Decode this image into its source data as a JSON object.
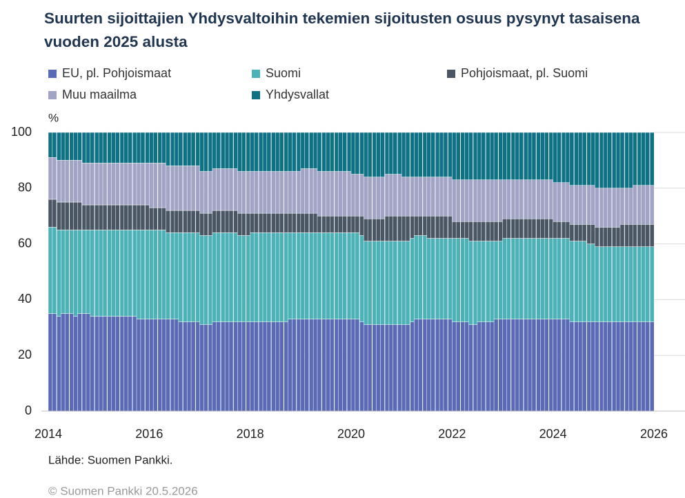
{
  "chart_data": {
    "type": "stacked_bar",
    "title": "Suurten sijoittajien Yhdysvaltoihin tekemien sijoitusten osuus pysynyt tasaisena vuoden 2025 alusta",
    "y_label": "%",
    "source": "Lähde: Suomen Pankki.",
    "copyright": "© Suomen Pankki 20.5.2026",
    "xlim": [
      2014,
      2026
    ],
    "xticks": [
      2014,
      2016,
      2018,
      2020,
      2022,
      2024,
      2026
    ],
    "ylim": [
      0,
      100
    ],
    "yticks": [
      0,
      20,
      40,
      60,
      80,
      100
    ],
    "grid": true,
    "x": [
      2014,
      2014.08,
      2014.17,
      2014.25,
      2014.33,
      2014.42,
      2014.5,
      2014.58,
      2014.67,
      2014.75,
      2014.83,
      2014.92,
      2015,
      2015.08,
      2015.17,
      2015.25,
      2015.33,
      2015.42,
      2015.5,
      2015.58,
      2015.67,
      2015.75,
      2015.83,
      2015.92,
      2016,
      2016.08,
      2016.17,
      2016.25,
      2016.33,
      2016.42,
      2016.5,
      2016.58,
      2016.67,
      2016.75,
      2016.83,
      2016.92,
      2017,
      2017.08,
      2017.17,
      2017.25,
      2017.33,
      2017.42,
      2017.5,
      2017.58,
      2017.67,
      2017.75,
      2017.83,
      2017.92,
      2018,
      2018.08,
      2018.17,
      2018.25,
      2018.33,
      2018.42,
      2018.5,
      2018.58,
      2018.67,
      2018.75,
      2018.83,
      2018.92,
      2019,
      2019.08,
      2019.17,
      2019.25,
      2019.33,
      2019.42,
      2019.5,
      2019.58,
      2019.67,
      2019.75,
      2019.83,
      2019.92,
      2020,
      2020.08,
      2020.17,
      2020.25,
      2020.33,
      2020.42,
      2020.5,
      2020.58,
      2020.67,
      2020.75,
      2020.83,
      2020.92,
      2021,
      2021.08,
      2021.17,
      2021.25,
      2021.33,
      2021.42,
      2021.5,
      2021.58,
      2021.67,
      2021.75,
      2021.83,
      2021.92,
      2022,
      2022.08,
      2022.17,
      2022.25,
      2022.33,
      2022.42,
      2022.5,
      2022.58,
      2022.67,
      2022.75,
      2022.83,
      2022.92,
      2023,
      2023.08,
      2023.17,
      2023.25,
      2023.33,
      2023.42,
      2023.5,
      2023.58,
      2023.67,
      2023.75,
      2023.83,
      2023.92,
      2024,
      2024.08,
      2024.17,
      2024.25,
      2024.33,
      2024.42,
      2024.5,
      2024.58,
      2024.67,
      2024.75,
      2024.83,
      2024.92,
      2025,
      2025.08,
      2025.17,
      2025.25,
      2025.33,
      2025.42,
      2025.5,
      2025.58,
      2025.67,
      2025.75,
      2025.83,
      2025.92
    ],
    "series": [
      {
        "name": "EU, pl. Pohjoismaat",
        "color": "#5a6ab4",
        "values": [
          35,
          35,
          34,
          35,
          35,
          35,
          34,
          35,
          35,
          35,
          34,
          34,
          34,
          34,
          34,
          34,
          34,
          34,
          34,
          34,
          34,
          33,
          33,
          33,
          33,
          33,
          33,
          33,
          33,
          33,
          33,
          32,
          32,
          32,
          32,
          32,
          31,
          31,
          31,
          32,
          32,
          32,
          32,
          32,
          32,
          32,
          32,
          32,
          32,
          32,
          32,
          32,
          32,
          32,
          32,
          32,
          32,
          33,
          33,
          33,
          33,
          33,
          33,
          33,
          33,
          33,
          33,
          33,
          33,
          33,
          33,
          33,
          33,
          33,
          32,
          31,
          31,
          31,
          31,
          31,
          31,
          31,
          31,
          31,
          31,
          31,
          32,
          33,
          33,
          33,
          33,
          33,
          33,
          33,
          33,
          33,
          32,
          32,
          32,
          32,
          31,
          31,
          32,
          32,
          32,
          32,
          33,
          33,
          33,
          33,
          33,
          33,
          33,
          33,
          33,
          33,
          33,
          33,
          33,
          33,
          33,
          33,
          33,
          33,
          32,
          32,
          32,
          32,
          32,
          32,
          32,
          32,
          32,
          32,
          32,
          32,
          32,
          32,
          32,
          32,
          32,
          32,
          32,
          32
        ]
      },
      {
        "name": "Suomi",
        "color": "#4db2b8",
        "values": [
          31,
          31,
          31,
          30,
          30,
          30,
          31,
          30,
          30,
          30,
          31,
          31,
          31,
          31,
          31,
          31,
          31,
          31,
          31,
          31,
          31,
          32,
          32,
          32,
          32,
          32,
          32,
          32,
          31,
          31,
          31,
          32,
          32,
          32,
          32,
          32,
          32,
          32,
          32,
          32,
          32,
          32,
          32,
          32,
          32,
          31,
          31,
          31,
          32,
          32,
          32,
          32,
          32,
          32,
          32,
          32,
          32,
          31,
          31,
          31,
          31,
          31,
          31,
          31,
          31,
          31,
          31,
          31,
          31,
          31,
          31,
          31,
          31,
          31,
          31,
          30,
          30,
          30,
          30,
          30,
          30,
          30,
          30,
          30,
          30,
          30,
          30,
          30,
          30,
          30,
          29,
          29,
          29,
          29,
          29,
          29,
          30,
          30,
          30,
          30,
          30,
          30,
          29,
          29,
          29,
          29,
          28,
          28,
          29,
          29,
          29,
          29,
          29,
          29,
          29,
          29,
          29,
          29,
          29,
          29,
          29,
          29,
          29,
          29,
          29,
          29,
          29,
          29,
          28,
          28,
          27,
          27,
          27,
          27,
          27,
          27,
          27,
          27,
          27,
          27,
          27,
          27,
          27,
          27
        ]
      },
      {
        "name": "Pohjoismaat, pl. Suomi",
        "color": "#4a5664",
        "values": [
          10,
          10,
          10,
          10,
          10,
          10,
          10,
          10,
          9,
          9,
          9,
          9,
          9,
          9,
          9,
          9,
          9,
          9,
          9,
          9,
          9,
          9,
          9,
          9,
          8,
          8,
          8,
          8,
          8,
          8,
          8,
          8,
          8,
          8,
          8,
          8,
          8,
          8,
          8,
          8,
          8,
          8,
          8,
          8,
          8,
          8,
          8,
          8,
          7,
          7,
          7,
          7,
          7,
          7,
          7,
          7,
          7,
          7,
          7,
          7,
          7,
          7,
          7,
          7,
          6,
          6,
          6,
          6,
          6,
          6,
          6,
          6,
          6,
          6,
          7,
          8,
          8,
          8,
          8,
          8,
          9,
          9,
          9,
          9,
          9,
          9,
          8,
          7,
          7,
          7,
          8,
          8,
          8,
          8,
          8,
          8,
          6,
          6,
          6,
          6,
          7,
          7,
          7,
          7,
          7,
          7,
          7,
          7,
          7,
          7,
          7,
          7,
          7,
          7,
          7,
          7,
          7,
          7,
          7,
          7,
          6,
          6,
          6,
          6,
          6,
          6,
          6,
          6,
          7,
          7,
          7,
          7,
          7,
          7,
          7,
          7,
          8,
          8,
          8,
          8,
          8,
          8,
          8,
          8
        ]
      },
      {
        "name": "Muu maailma",
        "color": "#a2a4c6",
        "values": [
          15,
          15,
          15,
          15,
          15,
          15,
          15,
          15,
          15,
          15,
          15,
          15,
          15,
          15,
          15,
          15,
          15,
          15,
          15,
          15,
          15,
          15,
          15,
          15,
          16,
          16,
          16,
          16,
          16,
          16,
          16,
          16,
          16,
          16,
          16,
          16,
          15,
          15,
          15,
          15,
          15,
          15,
          15,
          15,
          15,
          15,
          15,
          15,
          15,
          15,
          15,
          15,
          15,
          15,
          15,
          15,
          15,
          15,
          15,
          15,
          16,
          16,
          16,
          16,
          16,
          16,
          16,
          16,
          16,
          16,
          16,
          16,
          15,
          15,
          15,
          15,
          15,
          15,
          15,
          15,
          15,
          15,
          15,
          15,
          14,
          14,
          14,
          14,
          14,
          14,
          14,
          14,
          14,
          14,
          14,
          14,
          15,
          15,
          15,
          15,
          15,
          15,
          15,
          15,
          15,
          15,
          15,
          15,
          14,
          14,
          14,
          14,
          14,
          14,
          14,
          14,
          14,
          14,
          14,
          14,
          14,
          14,
          14,
          14,
          14,
          14,
          14,
          14,
          14,
          14,
          14,
          14,
          14,
          14,
          14,
          14,
          13,
          13,
          13,
          14,
          14,
          14,
          14,
          14
        ]
      },
      {
        "name": "Yhdysvallat",
        "color": "#0e7184",
        "values": [
          9,
          9,
          10,
          10,
          10,
          10,
          10,
          10,
          11,
          11,
          11,
          11,
          11,
          11,
          11,
          11,
          11,
          11,
          11,
          11,
          11,
          11,
          11,
          11,
          11,
          11,
          11,
          11,
          12,
          12,
          12,
          12,
          12,
          12,
          12,
          12,
          14,
          14,
          14,
          13,
          13,
          13,
          13,
          13,
          13,
          14,
          14,
          14,
          14,
          14,
          14,
          14,
          14,
          14,
          14,
          14,
          14,
          14,
          14,
          14,
          13,
          13,
          13,
          13,
          14,
          14,
          14,
          14,
          14,
          14,
          14,
          14,
          15,
          15,
          15,
          16,
          16,
          16,
          16,
          16,
          15,
          15,
          15,
          15,
          16,
          16,
          16,
          16,
          16,
          16,
          16,
          16,
          16,
          16,
          16,
          16,
          17,
          17,
          17,
          17,
          17,
          17,
          17,
          17,
          17,
          17,
          17,
          17,
          17,
          17,
          17,
          17,
          17,
          17,
          17,
          17,
          17,
          17,
          17,
          17,
          18,
          18,
          18,
          18,
          19,
          19,
          19,
          19,
          19,
          19,
          20,
          20,
          20,
          20,
          20,
          20,
          20,
          20,
          20,
          19,
          19,
          19,
          19,
          19
        ]
      }
    ]
  }
}
